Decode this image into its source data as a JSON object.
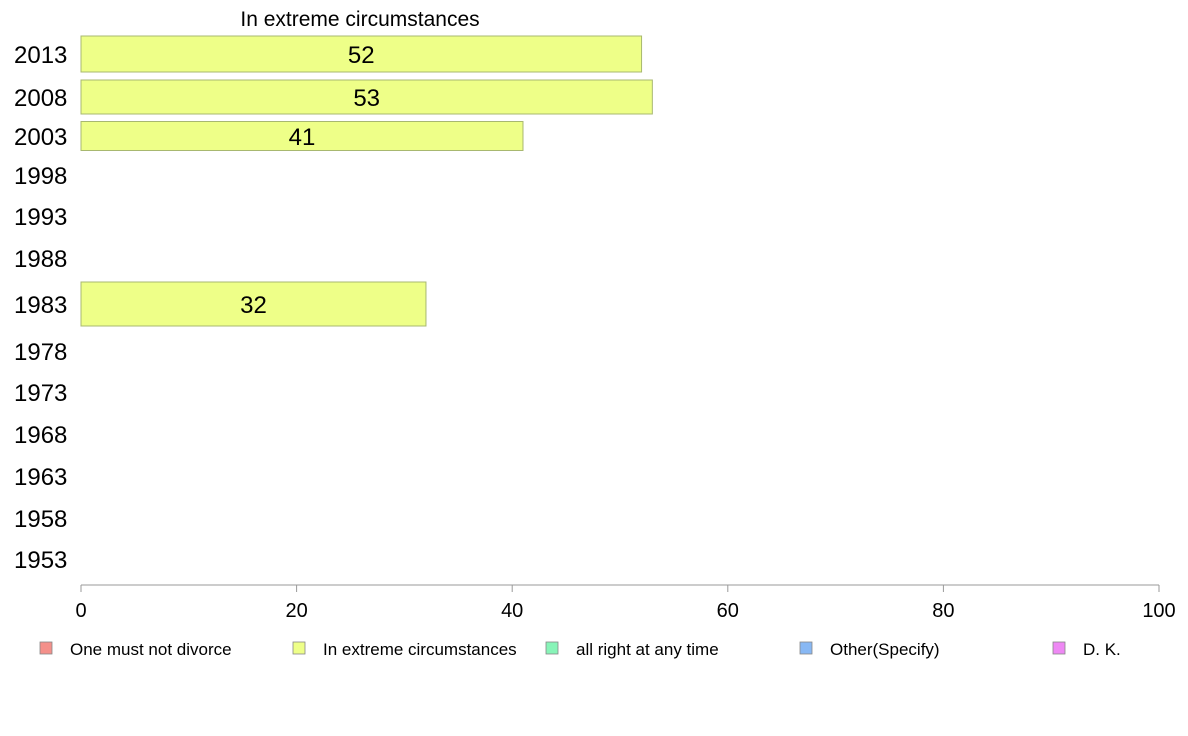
{
  "chart_data": {
    "type": "bar",
    "orientation": "horizontal",
    "title": "In extreme circumstances",
    "categories": [
      "2013",
      "2008",
      "2003",
      "1998",
      "1993",
      "1988",
      "1983",
      "1978",
      "1973",
      "1968",
      "1963",
      "1958",
      "1953"
    ],
    "series": [
      {
        "name": "In extreme circumstances",
        "color": "#eeff88",
        "values": [
          52,
          53,
          41,
          null,
          null,
          null,
          32,
          null,
          null,
          null,
          null,
          null,
          null
        ]
      }
    ],
    "data_labels": [
      "52",
      "53",
      "41",
      "",
      "",
      "",
      "32",
      "",
      "",
      "",
      "",
      "",
      ""
    ],
    "xlim": [
      0,
      100
    ],
    "xticks": [
      0,
      20,
      40,
      60,
      80,
      100
    ],
    "xtick_labels": [
      "0",
      "20",
      "40",
      "60",
      "80",
      "100"
    ],
    "xlabel": "",
    "ylabel": "",
    "grid": false,
    "legend": {
      "placement": "bottom",
      "entries": [
        {
          "label": "One must not divorce",
          "color": "#f4908a"
        },
        {
          "label": "In extreme circumstances",
          "color": "#eeff88"
        },
        {
          "label": "all right at any time",
          "color": "#88f4b8"
        },
        {
          "label": "Other(Specify)",
          "color": "#88b8f4"
        },
        {
          "label": "D. K.",
          "color": "#ee88f4"
        }
      ]
    }
  }
}
